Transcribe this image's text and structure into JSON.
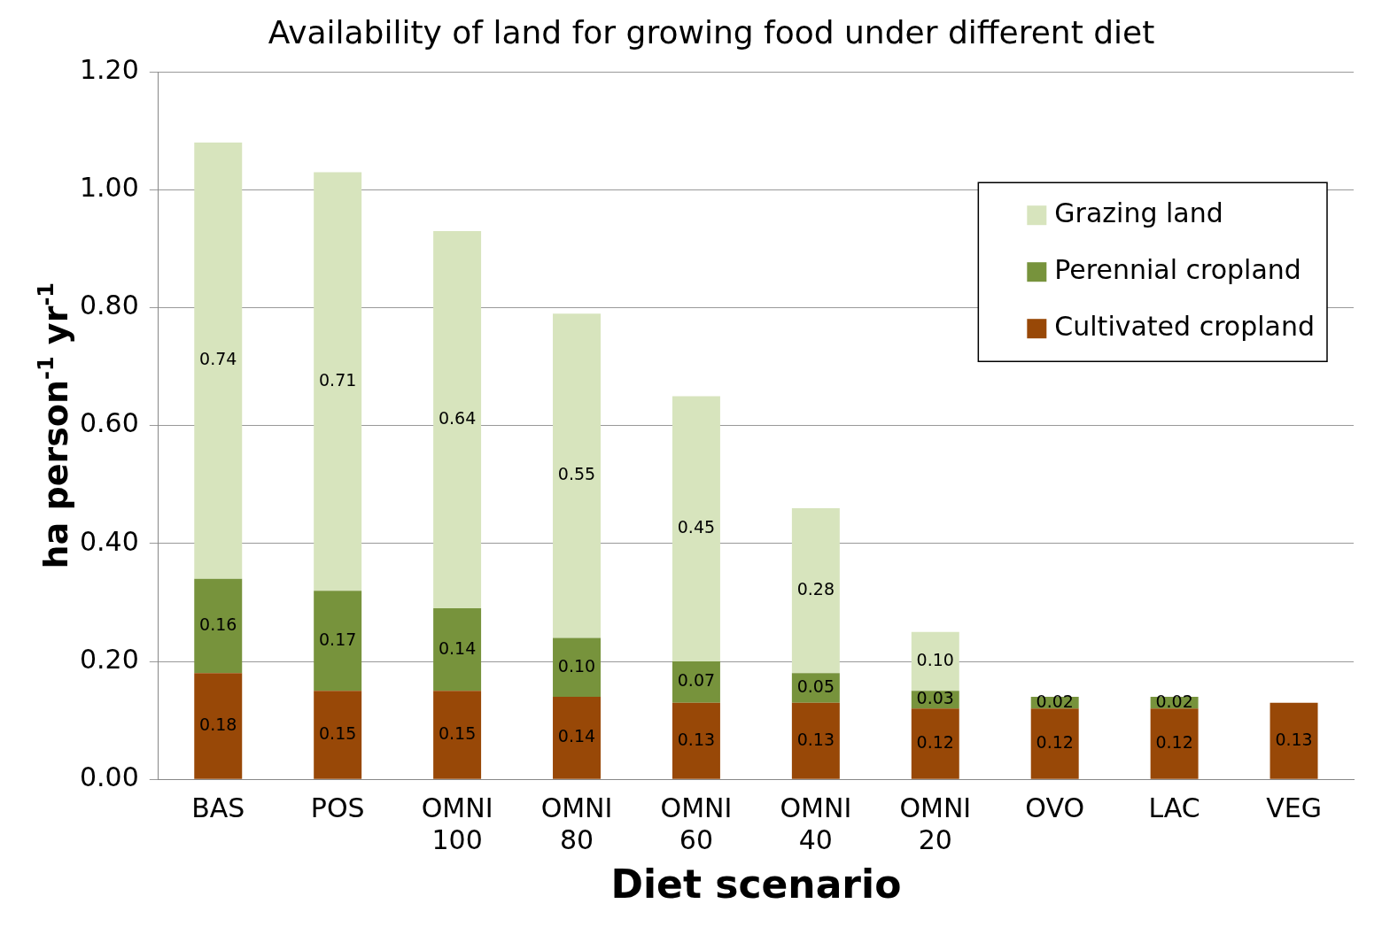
{
  "chart_data": {
    "type": "bar",
    "stacked": true,
    "title": "Availability of land for growing food under different diet",
    "xlabel": "Diet scenario",
    "ylabel": "ha person$^{-1}$ yr$^{-1}$",
    "categories": [
      "BAS",
      "POS",
      "OMNI 100",
      "OMNI 80",
      "OMNI 60",
      "OMNI 40",
      "OMNI 20",
      "OVO",
      "LAC",
      "VEG"
    ],
    "series": [
      {
        "name": "Cultivated cropland",
        "color": "#984807",
        "values": [
          0.18,
          0.15,
          0.15,
          0.14,
          0.13,
          0.13,
          0.12,
          0.12,
          0.12,
          0.13
        ],
        "value_labels": [
          "0.18",
          "0.15",
          "0.15",
          "0.14",
          "0.13",
          "0.13",
          "0.12",
          "0.12",
          "0.12",
          "0.13"
        ]
      },
      {
        "name": "Perennial cropland",
        "color": "#77933c",
        "values": [
          0.16,
          0.17,
          0.14,
          0.1,
          0.07,
          0.05,
          0.03,
          0.02,
          0.02,
          null
        ],
        "value_labels": [
          "0.16",
          "0.17",
          "0.14",
          "0.10",
          "0.07",
          "0.05",
          "0.03",
          "0.02",
          "0.02",
          null
        ]
      },
      {
        "name": "Grazing land",
        "color": "#d7e4bd",
        "values": [
          0.74,
          0.71,
          0.64,
          0.55,
          0.45,
          0.28,
          0.1,
          null,
          null,
          null
        ],
        "value_labels": [
          "0.74",
          "0.71",
          "0.64",
          "0.55",
          "0.45",
          "0.28",
          "0.10",
          null,
          null,
          null
        ]
      }
    ],
    "ylim": [
      0,
      1.2
    ],
    "yticks": [
      {
        "value": 0,
        "label": "0.00"
      },
      {
        "value": 0.2,
        "label": "0.20"
      },
      {
        "value": 0.4,
        "label": "0.40"
      },
      {
        "value": 0.6,
        "label": "0.60"
      },
      {
        "value": 0.8,
        "label": "0.80"
      },
      {
        "value": 1.0,
        "label": "1.00"
      },
      {
        "value": 1.2,
        "label": "1.20"
      }
    ],
    "grid": "y",
    "legend": "top right"
  }
}
